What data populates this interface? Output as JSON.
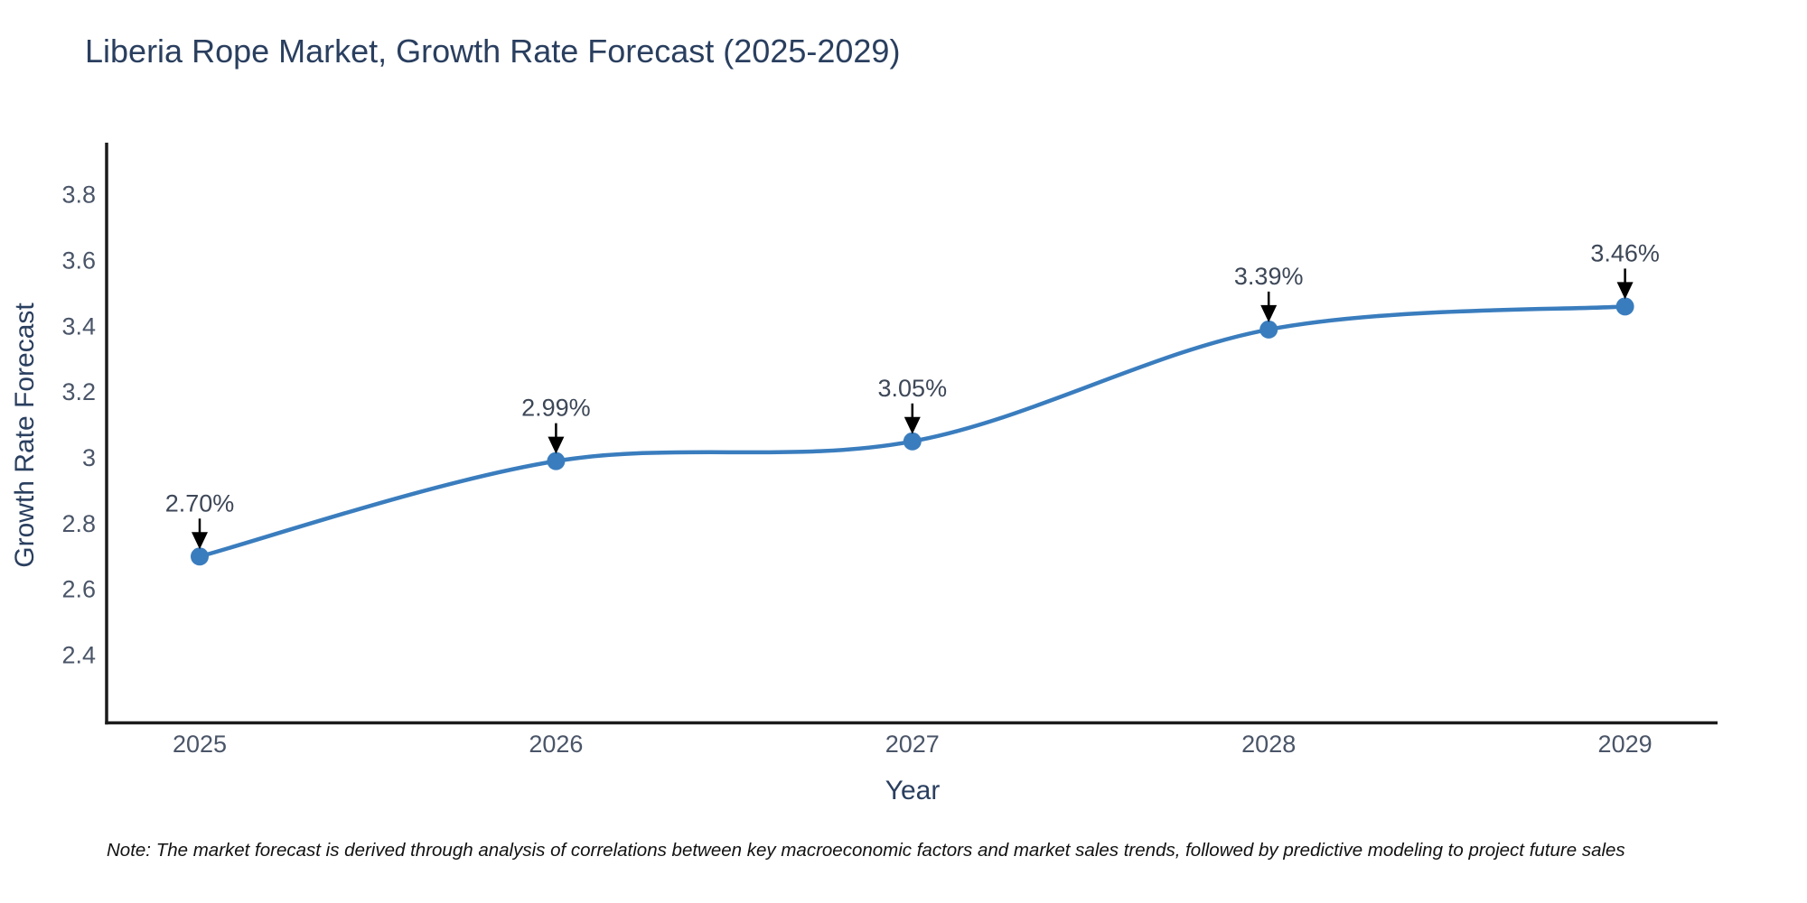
{
  "title": "Liberia Rope Market, Growth Rate Forecast (2025-2029)",
  "note": "Note: The market forecast is derived through analysis of correlations between key macroeconomic factors and market sales trends, followed by predictive modeling to project future sales",
  "chart_data": {
    "type": "line",
    "line_shape": "spline",
    "title": "Liberia Rope Market, Growth Rate Forecast (2025-2029)",
    "xlabel": "Year",
    "ylabel": "Growth Rate Forecast",
    "x": [
      2025,
      2026,
      2027,
      2028,
      2029
    ],
    "values": [
      2.7,
      2.99,
      3.05,
      3.39,
      3.46
    ],
    "point_labels": [
      "2.70%",
      "2.99%",
      "3.05%",
      "3.39%",
      "3.46%"
    ],
    "x_tick_labels": [
      "2025",
      "2026",
      "2027",
      "2028",
      "2029"
    ],
    "y_ticks": [
      3.8,
      3.6,
      3.4,
      3.2,
      3,
      2.8,
      2.6,
      2.4
    ],
    "y_tick_labels": [
      "3.8",
      "3.6",
      "3.4",
      "3.2",
      "3",
      "2.8",
      "2.6",
      "2.4"
    ],
    "ylim": [
      2.18,
      3.97
    ],
    "grid": false,
    "legend_position": "none",
    "annotations_have_arrows": true,
    "colors": {
      "line": "#3a7dbe",
      "marker": "#3a7dbe",
      "axis_line": "#1b1b1b",
      "title_text": "#2a3f5f",
      "tick_text": "#4a5568",
      "annotation_text": "#3d4757",
      "arrow": "#000000",
      "background": "#ffffff"
    }
  }
}
